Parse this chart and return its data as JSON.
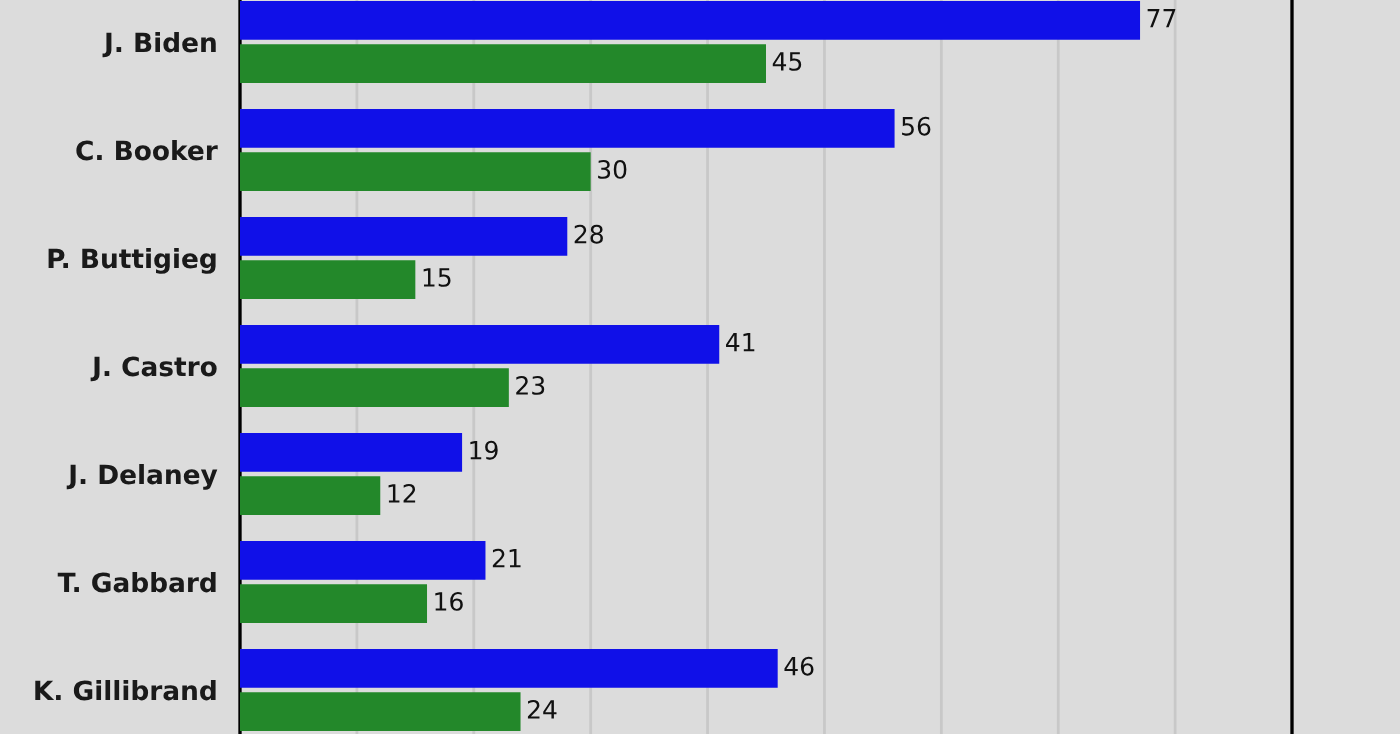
{
  "chart_data": {
    "type": "bar",
    "orientation": "horizontal",
    "categories": [
      "J. Biden",
      "C. Booker",
      "P. Buttigieg",
      "J. Castro",
      "J. Delaney",
      "T. Gabbard",
      "K. Gillibrand"
    ],
    "series": [
      {
        "color": "#1010e8",
        "values": [
          77,
          56,
          28,
          41,
          19,
          21,
          46
        ]
      },
      {
        "color": "#23882a",
        "values": [
          45,
          30,
          15,
          23,
          12,
          16,
          24
        ]
      }
    ],
    "xlim": [
      0,
      90
    ],
    "xticks": [
      {
        "value": 10,
        "label": null
      },
      {
        "value": 20,
        "label": null
      },
      {
        "value": 30,
        "label": null
      },
      {
        "value": 40,
        "label": null
      },
      {
        "value": 50,
        "label": null
      },
      {
        "value": 60,
        "label": null
      },
      {
        "value": 70,
        "label": null
      },
      {
        "value": 80,
        "label": null
      }
    ],
    "tick_labels": "y",
    "grid": "x",
    "data_labels": true,
    "legend": false
  }
}
